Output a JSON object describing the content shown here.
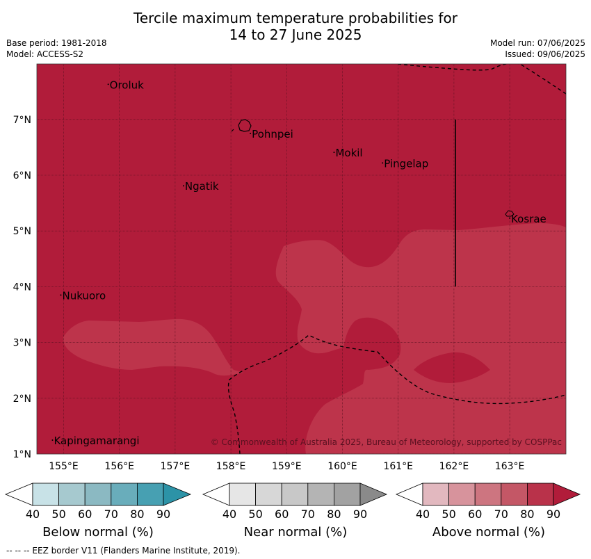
{
  "header": {
    "title_line1": "Tercile maximum temperature probabilities for",
    "title_line2": "14 to 27 June 2025",
    "base_period": "Base period: 1981-2018",
    "model": "Model: ACCESS-S2",
    "model_run": "Model run: 07/06/2025",
    "issued": "Issued: 09/06/2025"
  },
  "map": {
    "lon_ticks": [
      "155°E",
      "156°E",
      "157°E",
      "158°E",
      "159°E",
      "160°E",
      "161°E",
      "162°E",
      "163°E"
    ],
    "lat_ticks": [
      "1°N",
      "2°N",
      "3°N",
      "4°N",
      "5°N",
      "6°N",
      "7°N"
    ],
    "places": [
      {
        "name": "Oroluk",
        "lon": 155.8,
        "lat": 7.63
      },
      {
        "name": "Pohnpei",
        "lon": 158.35,
        "lat": 6.75
      },
      {
        "name": "Mokil",
        "lon": 159.85,
        "lat": 6.41
      },
      {
        "name": "Pingelap",
        "lon": 160.72,
        "lat": 6.22
      },
      {
        "name": "Ngatik",
        "lon": 157.15,
        "lat": 5.81
      },
      {
        "name": "Kosrae",
        "lon": 163.0,
        "lat": 5.23
      },
      {
        "name": "Nukuoro",
        "lon": 154.95,
        "lat": 3.85
      },
      {
        "name": "Kapingamarangi",
        "lon": 154.8,
        "lat": 1.25
      }
    ],
    "copyright": "© Commonwealth of Australia 2025, Bureau of Meteorology, supported by COSPPac",
    "colors": {
      "above_80_90": "#b11c3a",
      "above_70_80": "#bd344b",
      "eez_border": "#000000"
    }
  },
  "colorbars": [
    {
      "label": "Below normal (%)",
      "ticks": [
        "40",
        "50",
        "60",
        "70",
        "80",
        "90"
      ],
      "colors": [
        "#ffffff",
        "#c8e2e7",
        "#a6c9cf",
        "#8bb9c2",
        "#69adbb",
        "#47a0b2",
        "#2c93a7"
      ]
    },
    {
      "label": "Near normal (%)",
      "ticks": [
        "40",
        "50",
        "60",
        "70",
        "80",
        "90"
      ],
      "colors": [
        "#ffffff",
        "#e6e6e6",
        "#d7d7d7",
        "#c8c8c8",
        "#b4b4b4",
        "#a2a2a2",
        "#8a8a8a"
      ]
    },
    {
      "label": "Above normal (%)",
      "ticks": [
        "40",
        "50",
        "60",
        "70",
        "80",
        "90"
      ],
      "colors": [
        "#ffffff",
        "#e2b8bf",
        "#d7939c",
        "#cd7580",
        "#c45766",
        "#b9324a",
        "#b11c3a"
      ]
    }
  ],
  "footnote": "--  --  -- EEZ border V11 (Flanders Marine Institute, 2019)."
}
